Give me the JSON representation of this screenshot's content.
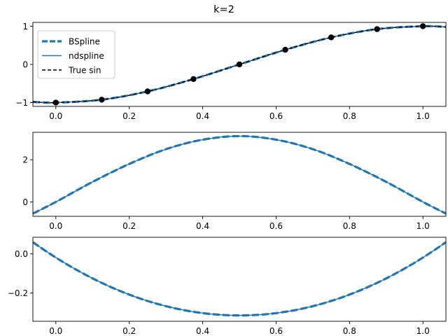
{
  "title": "k=2",
  "colors": {
    "bspline": "#1f77b4",
    "ndspline": "#1f77b4",
    "true_sin": "#000000",
    "points": "#000000"
  },
  "legend": {
    "placement": "upper-left",
    "items": [
      "BSpline",
      "ndspline",
      "True sin"
    ]
  },
  "chart_data": [
    {
      "type": "line",
      "title": "",
      "xlabel": "",
      "ylabel": "",
      "xlim": [
        -0.0625,
        1.0625
      ],
      "ylim": [
        -1.1,
        1.1
      ],
      "xticks": [
        "0.0",
        "0.2",
        "0.4",
        "0.6",
        "0.8",
        "1.0"
      ],
      "yticks": [
        "−1",
        "0",
        "1"
      ],
      "grid": false,
      "series": [
        {
          "name": "BSpline",
          "style": "dashed-thick",
          "x": [
            -0.0625,
            0,
            0.125,
            0.25,
            0.375,
            0.5,
            0.625,
            0.75,
            0.875,
            1.0,
            1.0625
          ],
          "y": [
            -0.981,
            -1.0,
            -0.924,
            -0.707,
            -0.383,
            0.0,
            0.383,
            0.707,
            0.924,
            1.0,
            0.981
          ]
        },
        {
          "name": "ndspline",
          "style": "solid",
          "x": [
            -0.0625,
            0,
            0.125,
            0.25,
            0.375,
            0.5,
            0.625,
            0.75,
            0.875,
            1.0,
            1.0625
          ],
          "y": [
            -0.981,
            -1.0,
            -0.924,
            -0.707,
            -0.383,
            0.0,
            0.383,
            0.707,
            0.924,
            1.0,
            0.981
          ]
        },
        {
          "name": "True sin",
          "style": "dashed",
          "x": [
            -0.0625,
            0,
            0.125,
            0.25,
            0.375,
            0.5,
            0.625,
            0.75,
            0.875,
            1.0,
            1.0625
          ],
          "y": [
            -0.981,
            -1.0,
            -0.924,
            -0.707,
            -0.383,
            0.0,
            0.383,
            0.707,
            0.924,
            1.0,
            0.981
          ]
        }
      ],
      "points": {
        "x": [
          0,
          0.125,
          0.25,
          0.375,
          0.5,
          0.625,
          0.75,
          0.875,
          1.0
        ],
        "y": [
          -1.0,
          -0.924,
          -0.707,
          -0.383,
          0.0,
          0.383,
          0.707,
          0.924,
          1.0
        ]
      }
    },
    {
      "type": "line",
      "title": "",
      "xlabel": "",
      "ylabel": "",
      "xlim": [
        -0.0625,
        1.0625
      ],
      "ylim": [
        -0.68,
        3.3
      ],
      "xticks": [
        "0.0",
        "0.2",
        "0.4",
        "0.6",
        "0.8",
        "1.0"
      ],
      "yticks": [
        "0",
        "2"
      ],
      "grid": false,
      "series": [
        {
          "name": "BSpline",
          "style": "dashed-thick",
          "x": [
            -0.0625,
            0,
            0.1,
            0.2,
            0.3,
            0.4,
            0.5,
            0.6,
            0.7,
            0.8,
            0.9,
            1.0,
            1.0625
          ],
          "y": [
            -0.55,
            0.0,
            0.95,
            1.8,
            2.5,
            2.95,
            3.12,
            2.95,
            2.5,
            1.8,
            0.95,
            0.0,
            -0.55
          ]
        },
        {
          "name": "ndspline",
          "style": "solid",
          "x": [
            -0.0625,
            0,
            0.1,
            0.2,
            0.3,
            0.4,
            0.5,
            0.6,
            0.7,
            0.8,
            0.9,
            1.0,
            1.0625
          ],
          "y": [
            -0.55,
            0.0,
            0.95,
            1.8,
            2.5,
            2.95,
            3.12,
            2.95,
            2.5,
            1.8,
            0.95,
            0.0,
            -0.55
          ]
        }
      ]
    },
    {
      "type": "line",
      "title": "",
      "xlabel": "",
      "ylabel": "",
      "xlim": [
        -0.0625,
        1.0625
      ],
      "ylim": [
        -0.345,
        0.085
      ],
      "xticks": [
        "0.0",
        "0.2",
        "0.4",
        "0.6",
        "0.8",
        "1.0"
      ],
      "yticks": [
        "0.0",
        "−0.2"
      ],
      "grid": false,
      "series": [
        {
          "name": "BSpline",
          "style": "dashed-thick",
          "x": [
            -0.0625,
            0.5,
            1.0625
          ],
          "y": [
            0.06,
            -0.315,
            0.06
          ]
        },
        {
          "name": "ndspline",
          "style": "solid",
          "x": [
            -0.0625,
            0.5,
            1.0625
          ],
          "y": [
            0.06,
            -0.315,
            0.06
          ]
        }
      ]
    }
  ]
}
